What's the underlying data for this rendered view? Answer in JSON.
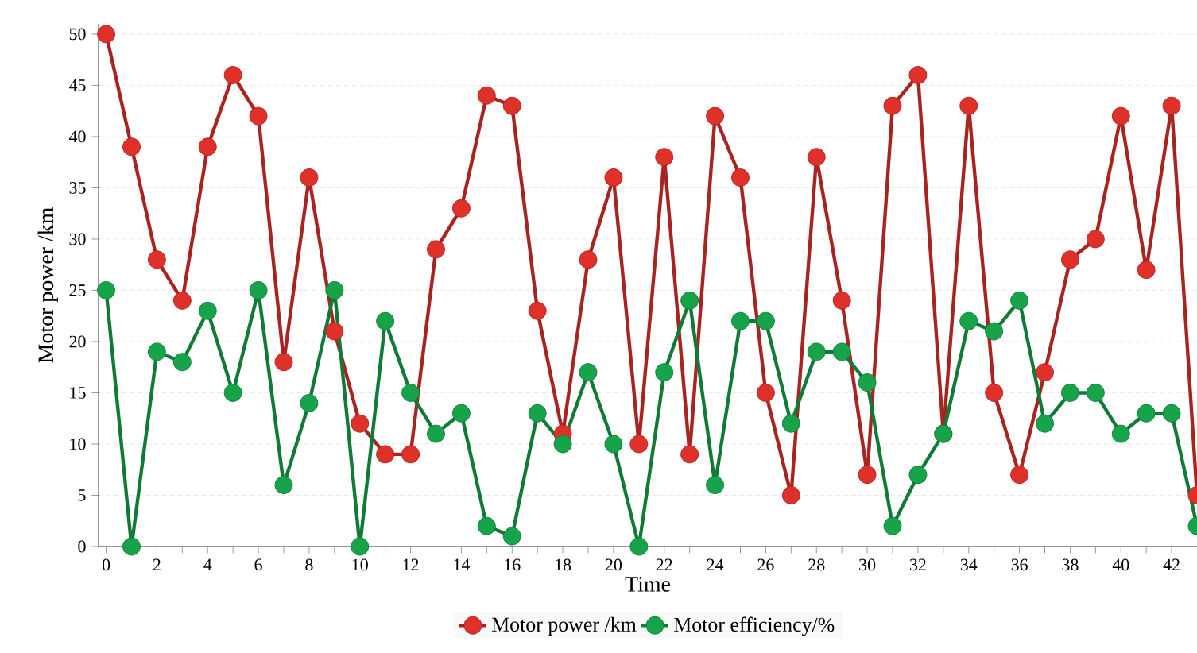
{
  "chart_data": {
    "type": "line",
    "xlabel": "Time",
    "ylabel": "Motor power /km",
    "x": [
      0,
      1,
      2,
      3,
      4,
      5,
      6,
      7,
      8,
      9,
      10,
      11,
      12,
      13,
      14,
      15,
      16,
      17,
      18,
      19,
      20,
      21,
      22,
      23,
      24,
      25,
      26,
      27,
      28,
      29,
      30,
      31,
      32,
      33,
      34,
      35,
      36,
      37,
      38,
      39,
      40,
      41,
      42,
      43
    ],
    "series": [
      {
        "name": "Motor power /km",
        "color": "#e0302a",
        "values": [
          50,
          39,
          28,
          24,
          39,
          46,
          42,
          18,
          36,
          21,
          12,
          9,
          9,
          29,
          33,
          44,
          43,
          23,
          11,
          28,
          36,
          10,
          38,
          9,
          42,
          36,
          15,
          5,
          38,
          24,
          7,
          43,
          46,
          11,
          43,
          15,
          7,
          17,
          28,
          30,
          42,
          27,
          43,
          5
        ]
      },
      {
        "name": "Motor efficiency/%",
        "color": "#17a34a",
        "values": [
          25,
          0,
          19,
          18,
          23,
          15,
          25,
          6,
          14,
          25,
          0,
          22,
          15,
          11,
          13,
          2,
          1,
          13,
          10,
          17,
          10,
          0,
          17,
          24,
          6,
          22,
          22,
          12,
          19,
          19,
          16,
          2,
          7,
          11,
          22,
          21,
          24,
          12,
          15,
          15,
          11,
          13,
          13,
          2
        ]
      }
    ],
    "xlim": [
      -0.3,
      43
    ],
    "ylim": [
      0,
      51
    ],
    "xticks": [
      0,
      {
        "value": 1,
        "label": null
      },
      2,
      {
        "value": 3,
        "label": null
      },
      4,
      {
        "value": 5,
        "label": null
      },
      6,
      {
        "value": 7,
        "label": null
      },
      8,
      {
        "value": 9,
        "label": null
      },
      10,
      {
        "value": 11,
        "label": null
      },
      12,
      {
        "value": 13,
        "label": null
      },
      14,
      {
        "value": 15,
        "label": null
      },
      16,
      {
        "value": 17,
        "label": null
      },
      18,
      {
        "value": 19,
        "label": null
      },
      20,
      {
        "value": 21,
        "label": null
      },
      22,
      {
        "value": 23,
        "label": null
      },
      24,
      {
        "value": 25,
        "label": null
      },
      26,
      {
        "value": 27,
        "label": null
      },
      28,
      {
        "value": 29,
        "label": null
      },
      30,
      {
        "value": 31,
        "label": null
      },
      32,
      {
        "value": 33,
        "label": null
      },
      34,
      {
        "value": 35,
        "label": null
      },
      36,
      {
        "value": 37,
        "label": null
      },
      38,
      {
        "value": 39,
        "label": null
      },
      40,
      {
        "value": 41,
        "label": null
      },
      42
    ],
    "yticks": [
      0,
      5,
      10,
      15,
      20,
      25,
      30,
      35,
      40,
      45,
      50
    ],
    "grid": "y",
    "legend": "bottom",
    "marker": "circle",
    "line_style": "solid"
  }
}
